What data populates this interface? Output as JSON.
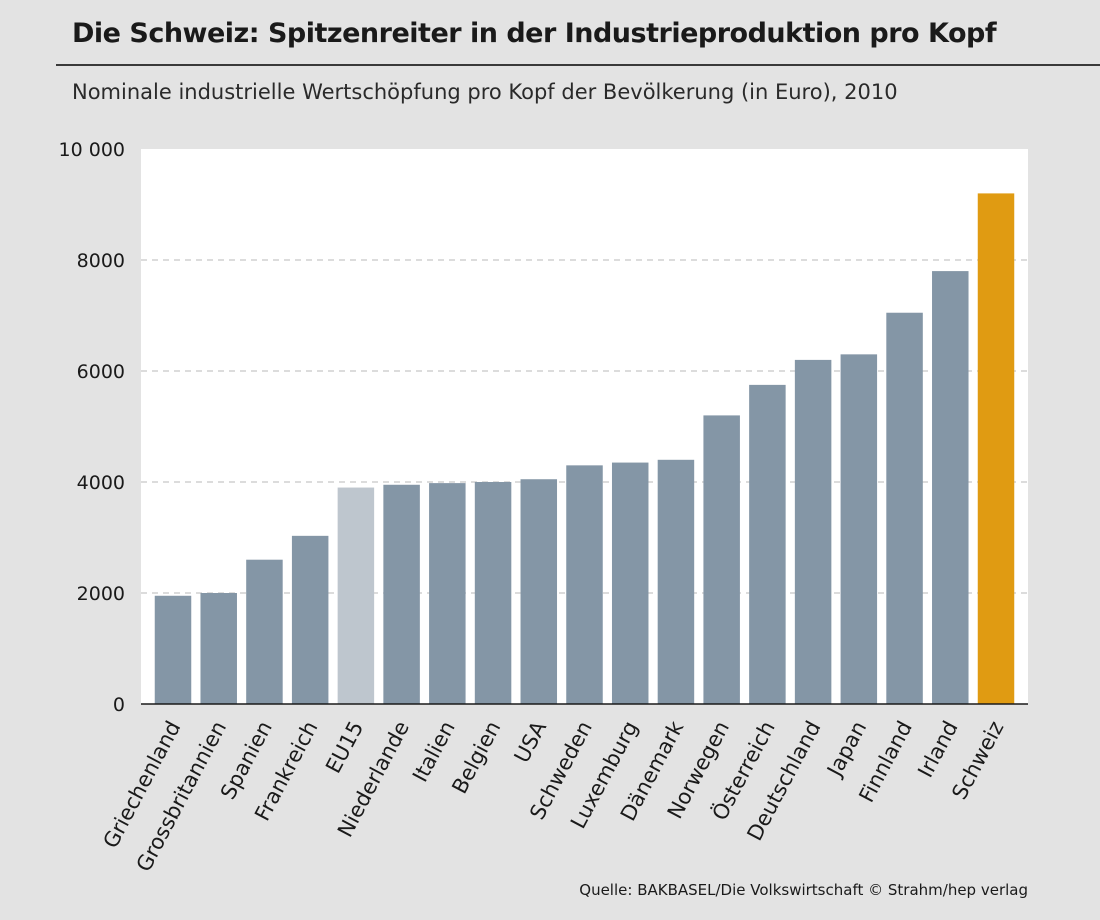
{
  "header": {
    "title": "Die Schweiz: Spitzenreiter in der Industrieproduktion pro Kopf",
    "subtitle": "Nominale industrielle Wertschöpfung pro Kopf der Bevölkerung (in Euro), 2010"
  },
  "footer": {
    "source": "Quelle: BAKBASEL/Die Volkswirtschaft  © Strahm/hep verlag"
  },
  "colors": {
    "default_bar": "#8496a6",
    "eu15_bar": "#bec6ce",
    "highlight_bar": "#e09b12",
    "plot_background": "#ffffff",
    "grid": "#c8c8c8"
  },
  "chart_data": {
    "type": "bar",
    "title": "Die Schweiz: Spitzenreiter in der Industrieproduktion pro Kopf",
    "subtitle": "Nominale industrielle Wertschöpfung pro Kopf der Bevölkerung (in Euro), 2010",
    "xlabel": "",
    "ylabel": "",
    "ylim": [
      0,
      10000
    ],
    "yticks": [
      0,
      2000,
      4000,
      6000,
      8000,
      10000
    ],
    "ytick_labels": [
      "0",
      "2000",
      "4000",
      "6000",
      "8000",
      "10 000"
    ],
    "grid": true,
    "categories": [
      "Griechenland",
      "Grossbritannien",
      "Spanien",
      "Frankreich",
      "EU15",
      "Niederlande",
      "Italien",
      "Belgien",
      "USA",
      "Schweden",
      "Luxemburg",
      "Dänemark",
      "Norwegen",
      "Österreich",
      "Deutschland",
      "Japan",
      "Finnland",
      "Irland",
      "Schweiz"
    ],
    "values": [
      1950,
      2000,
      2600,
      3030,
      3900,
      3950,
      3980,
      4000,
      4050,
      4300,
      4350,
      4400,
      5200,
      5750,
      6200,
      6300,
      7050,
      7800,
      9200
    ],
    "bar_styles": [
      "default",
      "default",
      "default",
      "default",
      "eu15",
      "default",
      "default",
      "default",
      "default",
      "default",
      "default",
      "default",
      "default",
      "default",
      "default",
      "default",
      "default",
      "default",
      "highlight"
    ]
  }
}
